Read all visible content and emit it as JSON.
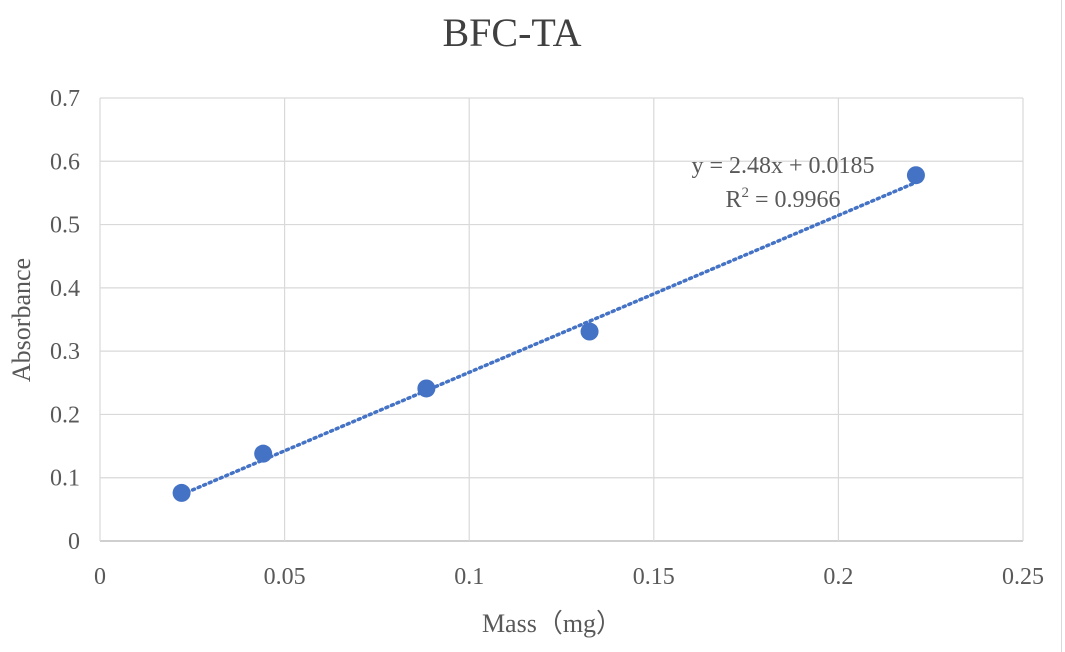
{
  "chart_data": {
    "type": "scatter",
    "title": "BFC-TA",
    "xlabel": "Mass（mg）",
    "ylabel": "Absorbance",
    "xlim": [
      0,
      0.25
    ],
    "ylim": [
      0,
      0.7
    ],
    "x_ticks": [
      "0",
      "0.05",
      "0.1",
      "0.15",
      "0.2",
      "0.25"
    ],
    "x_tick_values": [
      0,
      0.05,
      0.1,
      0.15,
      0.2,
      0.25
    ],
    "y_ticks": [
      "0",
      "0.1",
      "0.2",
      "0.3",
      "0.4",
      "0.5",
      "0.6",
      "0.7"
    ],
    "y_tick_values": [
      0,
      0.1,
      0.2,
      0.3,
      0.4,
      0.5,
      0.6,
      0.7
    ],
    "grid": true,
    "series": [
      {
        "x": [
          0.0221,
          0.0442,
          0.0884,
          0.1326,
          0.221
        ],
        "y": [
          0.076,
          0.138,
          0.241,
          0.331,
          0.578
        ],
        "color": "#4472c4"
      }
    ],
    "trendline": {
      "type": "linear",
      "slope": 2.48,
      "intercept": 0.0185,
      "x_range": [
        0.0221,
        0.221
      ],
      "style": "dotted",
      "color": "#4472c4"
    },
    "annotations": {
      "equation": "y = 2.48x + 0.0185",
      "r_squared_label": "R",
      "r_squared_sup": "2",
      "r_squared_value": " = 0.9966"
    }
  }
}
